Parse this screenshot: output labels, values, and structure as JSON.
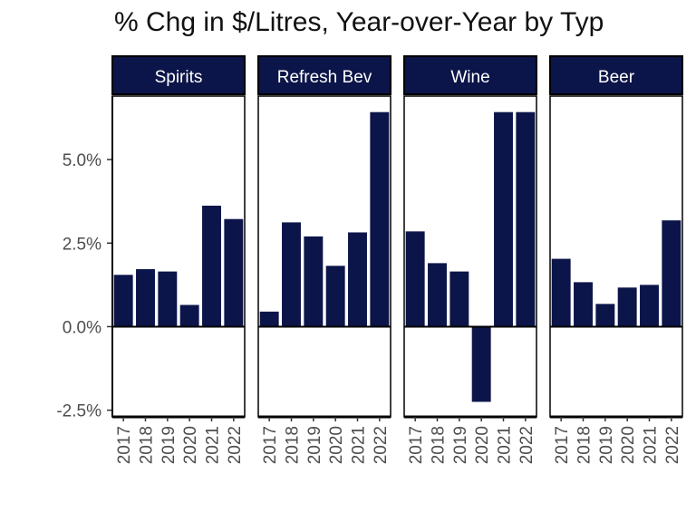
{
  "chart_data": {
    "type": "bar",
    "title": "% Chg in $/Litres, Year-over-Year by Typ",
    "xlabel": "",
    "ylabel": "",
    "ylim": [
      -2.7,
      6.9
    ],
    "yticks": [
      "-2.5%",
      "0.0%",
      "2.5%",
      "5.0%"
    ],
    "ytick_values": [
      -2.5,
      0,
      2.5,
      5.0
    ],
    "categories": [
      "2017",
      "2018",
      "2019",
      "2020",
      "2021",
      "2022"
    ],
    "series": [
      {
        "name": "Spirits",
        "values": [
          1.55,
          1.72,
          1.65,
          0.65,
          3.62,
          3.22
        ]
      },
      {
        "name": "Refresh Bev",
        "values": [
          0.45,
          3.12,
          2.7,
          1.82,
          2.82,
          6.42
        ]
      },
      {
        "name": "Wine",
        "values": [
          2.85,
          1.9,
          1.65,
          -2.25,
          6.42,
          6.42
        ]
      },
      {
        "name": "Beer",
        "values": [
          2.03,
          1.33,
          0.68,
          1.17,
          1.25,
          3.18
        ]
      }
    ],
    "colors": {
      "bar": "#0c1549",
      "strip": "#0c1549",
      "zero_line": "#000000"
    },
    "grid": false,
    "legend": "none"
  }
}
